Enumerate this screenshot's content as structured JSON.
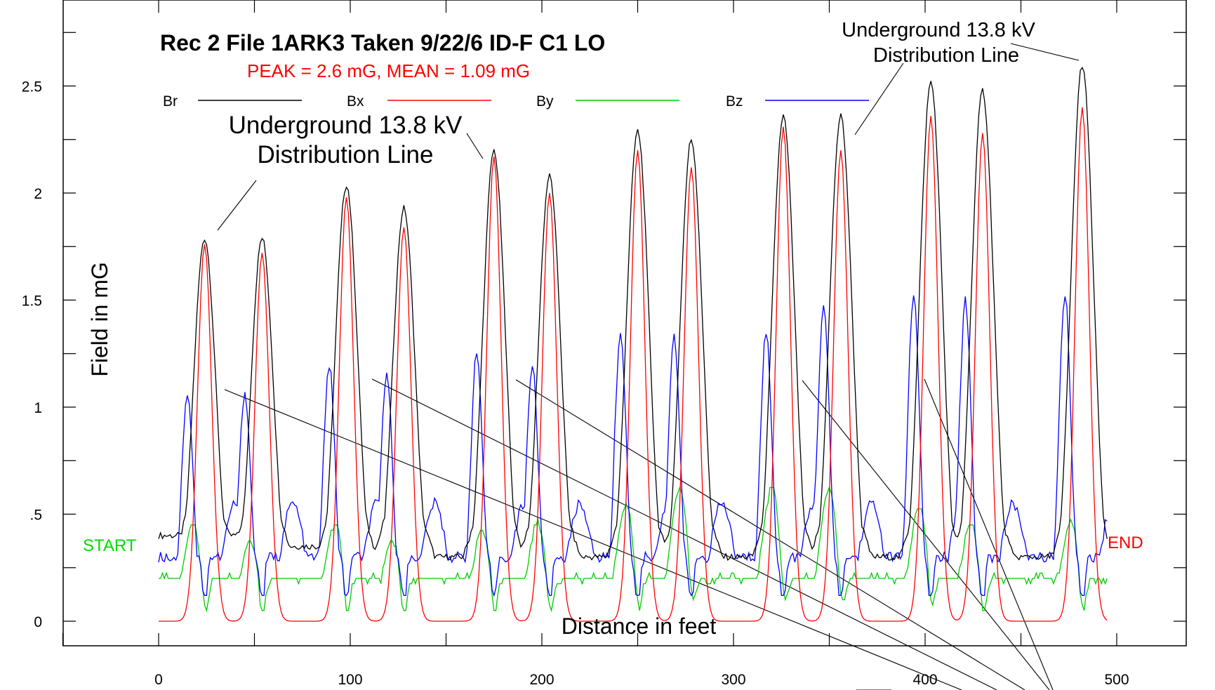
{
  "chart_data": {
    "type": "line",
    "title": "Rec 2  File 1ARK3  Taken 9/22/6  ID-F C1 LO",
    "subtitle": "PEAK = 2.6 mG, MEAN = 1.09 mG",
    "xlabel": "Distance in feet",
    "ylabel": "Field in mG",
    "xlim": [
      -50,
      530
    ],
    "ylim": [
      -0.12,
      2.88
    ],
    "x_ticks": [
      {
        "value": 0,
        "label": "0"
      },
      {
        "value": 100,
        "label": "100"
      },
      {
        "value": 200,
        "label": "200"
      },
      {
        "value": 300,
        "label": "300"
      },
      {
        "value": 400,
        "label": "400"
      },
      {
        "value": 500,
        "label": "500"
      }
    ],
    "y_ticks": [
      {
        "value": 0,
        "label": "0"
      },
      {
        "value": 0.5,
        "label": ".5"
      },
      {
        "value": 1,
        "label": "1"
      },
      {
        "value": 1.5,
        "label": "1.5"
      },
      {
        "value": 2,
        "label": "2"
      },
      {
        "value": 2.5,
        "label": "2.5"
      }
    ],
    "grid": false,
    "legend": [
      {
        "name": "Br",
        "color": "#000000"
      },
      {
        "name": "Bx",
        "color": "#ff0000"
      },
      {
        "name": "By",
        "color": "#00cc00"
      },
      {
        "name": "Bz",
        "color": "#0000ff"
      }
    ],
    "series_shape": {
      "x_start": 0,
      "x_end": 495,
      "x_step": 1,
      "peak_x": [
        24,
        54,
        98,
        128,
        175,
        204,
        250,
        278,
        326,
        356,
        403,
        430,
        482
      ],
      "Br_peaks": [
        1.79,
        1.79,
        2.04,
        1.93,
        2.2,
        2.08,
        2.29,
        2.25,
        2.36,
        2.36,
        2.52,
        2.48,
        2.6
      ],
      "Bx_peaks": [
        1.76,
        1.72,
        1.98,
        1.84,
        2.17,
        2.0,
        2.2,
        2.12,
        2.31,
        2.2,
        2.36,
        2.28,
        2.4
      ],
      "Br_baseline": [
        0.4,
        0.35,
        0.3,
        0.3,
        0.3,
        0.3
      ],
      "Bz_peaks": [
        1.07,
        1.07,
        1.2,
        1.16,
        1.25,
        1.2,
        1.35,
        1.33,
        1.35,
        1.48,
        1.52,
        1.5,
        1.52
      ],
      "By_peaks": [
        0.43,
        0.36,
        0.43,
        0.36,
        0.4,
        0.44,
        0.52,
        0.6,
        0.6,
        0.6,
        0.52,
        0.44,
        0.44
      ],
      "By_baseline": 0.2
    },
    "annotations": [
      {
        "text": [
          "Underground 13.8 kV",
          "Distribution Line"
        ],
        "x": 97,
        "y": 2.25
      },
      {
        "text": [
          "Underground 13.8 kV",
          "Distribution Line"
        ],
        "x": 411,
        "y": 2.6
      }
    ],
    "markers": [
      {
        "text": "START",
        "color": "#00dd00"
      },
      {
        "text": "END",
        "color": "#ff0000"
      }
    ]
  }
}
